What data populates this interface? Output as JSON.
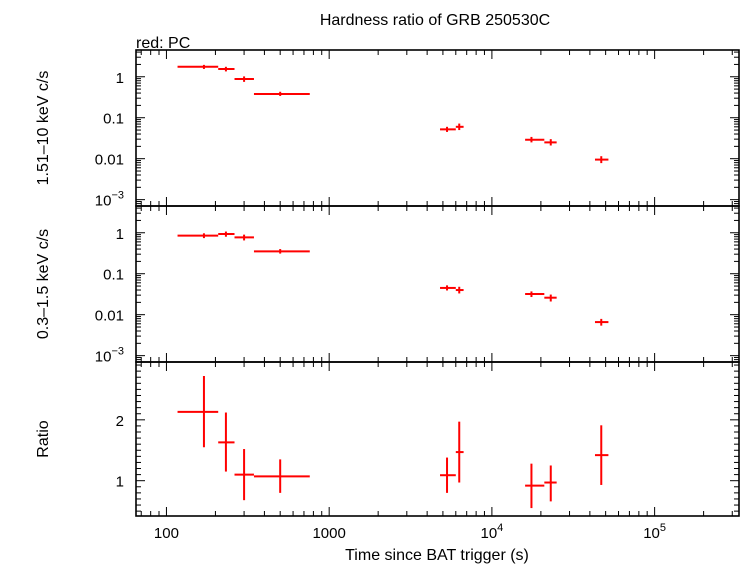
{
  "chart_data": {
    "type": "scatter",
    "title": "Hardness ratio of GRB 250530C",
    "legend": "red: PC",
    "xlabel": "Time since BAT trigger (s)",
    "x_scale": "log",
    "xlim": [
      65,
      330000
    ],
    "x_ticks": [
      {
        "value": 100,
        "label": "100"
      },
      {
        "value": 1000,
        "label": "1000"
      },
      {
        "value": 10000,
        "label": "10",
        "exp": "4"
      },
      {
        "value": 100000,
        "label": "10",
        "exp": "5"
      }
    ],
    "color": "#ff0000",
    "panels": [
      {
        "id": "hard",
        "ylabel": "1.51–10 keV c/s",
        "y_scale": "log",
        "ylim": [
          0.0007,
          4.5
        ],
        "y_ticks": [
          {
            "value": 1,
            "label": "1"
          },
          {
            "value": 0.1,
            "label": "0.1"
          },
          {
            "value": 0.01,
            "label": "0.01"
          },
          {
            "value": 0.001,
            "label": "10",
            "exp": "−3"
          }
        ],
        "points": [
          {
            "x": 170,
            "xlo": 117,
            "xhi": 208,
            "y": 1.75,
            "ylo": 1.55,
            "yhi": 1.95
          },
          {
            "x": 232,
            "xlo": 208,
            "xhi": 262,
            "y": 1.55,
            "ylo": 1.35,
            "yhi": 1.75
          },
          {
            "x": 300,
            "xlo": 262,
            "xhi": 345,
            "y": 0.88,
            "ylo": 0.75,
            "yhi": 1.02
          },
          {
            "x": 500,
            "xlo": 345,
            "xhi": 760,
            "y": 0.38,
            "ylo": 0.34,
            "yhi": 0.43
          },
          {
            "x": 5300,
            "xlo": 4800,
            "xhi": 6000,
            "y": 0.052,
            "ylo": 0.045,
            "yhi": 0.06
          },
          {
            "x": 6300,
            "xlo": 6000,
            "xhi": 6700,
            "y": 0.06,
            "ylo": 0.05,
            "yhi": 0.072
          },
          {
            "x": 17500,
            "xlo": 16000,
            "xhi": 21000,
            "y": 0.029,
            "ylo": 0.025,
            "yhi": 0.034
          },
          {
            "x": 23000,
            "xlo": 21000,
            "xhi": 25000,
            "y": 0.025,
            "ylo": 0.021,
            "yhi": 0.03
          },
          {
            "x": 47000,
            "xlo": 43000,
            "xhi": 52000,
            "y": 0.0095,
            "ylo": 0.0078,
            "yhi": 0.0115
          }
        ]
      },
      {
        "id": "soft",
        "ylabel": "0.3–1.5 keV c/s",
        "y_scale": "log",
        "ylim": [
          0.0007,
          4.5
        ],
        "y_ticks": [
          {
            "value": 1,
            "label": "1"
          },
          {
            "value": 0.1,
            "label": "0.1"
          },
          {
            "value": 0.01,
            "label": "0.01"
          },
          {
            "value": 0.001,
            "label": "10",
            "exp": "−3"
          }
        ],
        "points": [
          {
            "x": 170,
            "xlo": 117,
            "xhi": 208,
            "y": 0.85,
            "ylo": 0.74,
            "yhi": 0.97
          },
          {
            "x": 232,
            "xlo": 208,
            "xhi": 262,
            "y": 0.93,
            "ylo": 0.8,
            "yhi": 1.07
          },
          {
            "x": 300,
            "xlo": 262,
            "xhi": 345,
            "y": 0.77,
            "ylo": 0.65,
            "yhi": 0.9
          },
          {
            "x": 500,
            "xlo": 345,
            "xhi": 760,
            "y": 0.35,
            "ylo": 0.31,
            "yhi": 0.4
          },
          {
            "x": 5300,
            "xlo": 4800,
            "xhi": 6000,
            "y": 0.045,
            "ylo": 0.039,
            "yhi": 0.052
          },
          {
            "x": 6300,
            "xlo": 6000,
            "xhi": 6700,
            "y": 0.04,
            "ylo": 0.033,
            "yhi": 0.048
          },
          {
            "x": 17500,
            "xlo": 16000,
            "xhi": 21000,
            "y": 0.032,
            "ylo": 0.027,
            "yhi": 0.037
          },
          {
            "x": 23000,
            "xlo": 21000,
            "xhi": 25000,
            "y": 0.026,
            "ylo": 0.021,
            "yhi": 0.031
          },
          {
            "x": 47000,
            "xlo": 43000,
            "xhi": 52000,
            "y": 0.0066,
            "ylo": 0.0054,
            "yhi": 0.0079
          }
        ]
      },
      {
        "id": "ratio",
        "ylabel": "Ratio",
        "y_scale": "linear",
        "ylim": [
          0.42,
          2.95
        ],
        "y_ticks": [
          {
            "value": 1,
            "label": "1"
          },
          {
            "value": 2,
            "label": "2"
          }
        ],
        "points": [
          {
            "x": 170,
            "xlo": 117,
            "xhi": 208,
            "y": 2.13,
            "ylo": 1.55,
            "yhi": 2.72
          },
          {
            "x": 232,
            "xlo": 208,
            "xhi": 262,
            "y": 1.63,
            "ylo": 1.15,
            "yhi": 2.12
          },
          {
            "x": 300,
            "xlo": 262,
            "xhi": 345,
            "y": 1.1,
            "ylo": 0.68,
            "yhi": 1.52
          },
          {
            "x": 500,
            "xlo": 345,
            "xhi": 760,
            "y": 1.07,
            "ylo": 0.8,
            "yhi": 1.35
          },
          {
            "x": 5300,
            "xlo": 4800,
            "xhi": 6000,
            "y": 1.09,
            "ylo": 0.8,
            "yhi": 1.38
          },
          {
            "x": 6300,
            "xlo": 6000,
            "xhi": 6700,
            "y": 1.47,
            "ylo": 0.97,
            "yhi": 1.97
          },
          {
            "x": 17500,
            "xlo": 16000,
            "xhi": 21000,
            "y": 0.92,
            "ylo": 0.55,
            "yhi": 1.28
          },
          {
            "x": 23000,
            "xlo": 21000,
            "xhi": 25000,
            "y": 0.97,
            "ylo": 0.66,
            "yhi": 1.25
          },
          {
            "x": 47000,
            "xlo": 43000,
            "xhi": 52000,
            "y": 1.42,
            "ylo": 0.93,
            "yhi": 1.91
          }
        ]
      }
    ]
  }
}
